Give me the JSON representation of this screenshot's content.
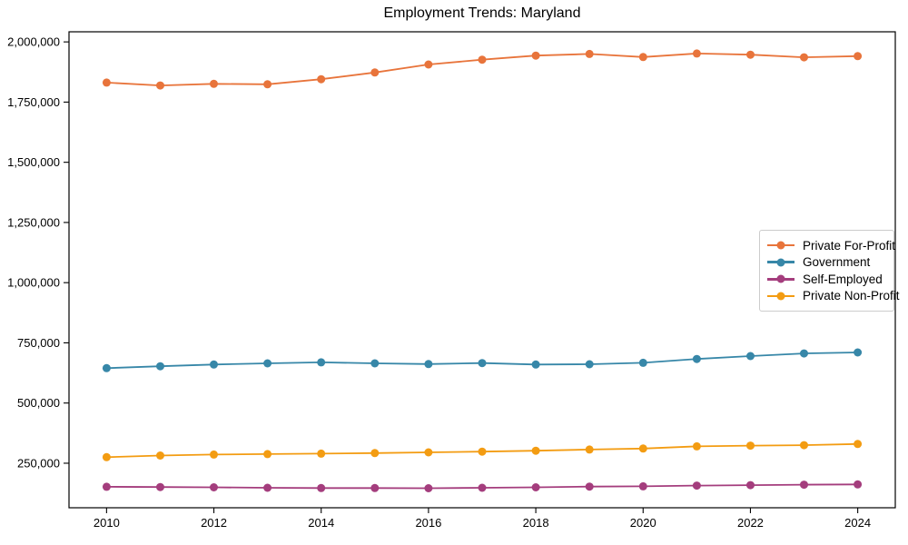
{
  "window": {
    "background_color": "#ffffff"
  },
  "chart_data": {
    "type": "line",
    "title": "Employment Trends: Maryland",
    "xlabel": "",
    "ylabel": "",
    "grid": false,
    "legend_position": "center-right",
    "axis_color": "#000000",
    "xlim": [
      2009.3,
      2024.7
    ],
    "ylim": [
      65000,
      2042000
    ],
    "xticks": [
      2010,
      2012,
      2014,
      2016,
      2018,
      2020,
      2022,
      2024
    ],
    "yticks": [
      250000,
      500000,
      750000,
      1000000,
      1250000,
      1500000,
      1750000,
      2000000
    ],
    "x": [
      2010,
      2011,
      2012,
      2013,
      2014,
      2015,
      2016,
      2017,
      2018,
      2019,
      2020,
      2021,
      2022,
      2023,
      2024
    ],
    "series": [
      {
        "name": "Private For-Profit",
        "color": "#E8743B",
        "values": [
          1831000,
          1819000,
          1826000,
          1824000,
          1845000,
          1873000,
          1906000,
          1926000,
          1943000,
          1950000,
          1937000,
          1952000,
          1947000,
          1936000,
          1941000
        ]
      },
      {
        "name": "Government",
        "color": "#3787A8",
        "values": [
          645000,
          653000,
          660000,
          665000,
          669000,
          665000,
          662000,
          666000,
          660000,
          661000,
          667000,
          683000,
          695000,
          706000,
          710000
        ]
      },
      {
        "name": "Self-Employed",
        "color": "#A43D7D",
        "values": [
          152000,
          151000,
          150000,
          148000,
          147000,
          147000,
          146000,
          148000,
          150000,
          153000,
          154000,
          157000,
          159000,
          161000,
          162000
        ]
      },
      {
        "name": "Private Non-Profit",
        "color": "#F39C12",
        "values": [
          275000,
          282000,
          286000,
          288000,
          290000,
          292000,
          295000,
          298000,
          302000,
          307000,
          311000,
          320000,
          323000,
          325000,
          330000
        ]
      }
    ]
  }
}
